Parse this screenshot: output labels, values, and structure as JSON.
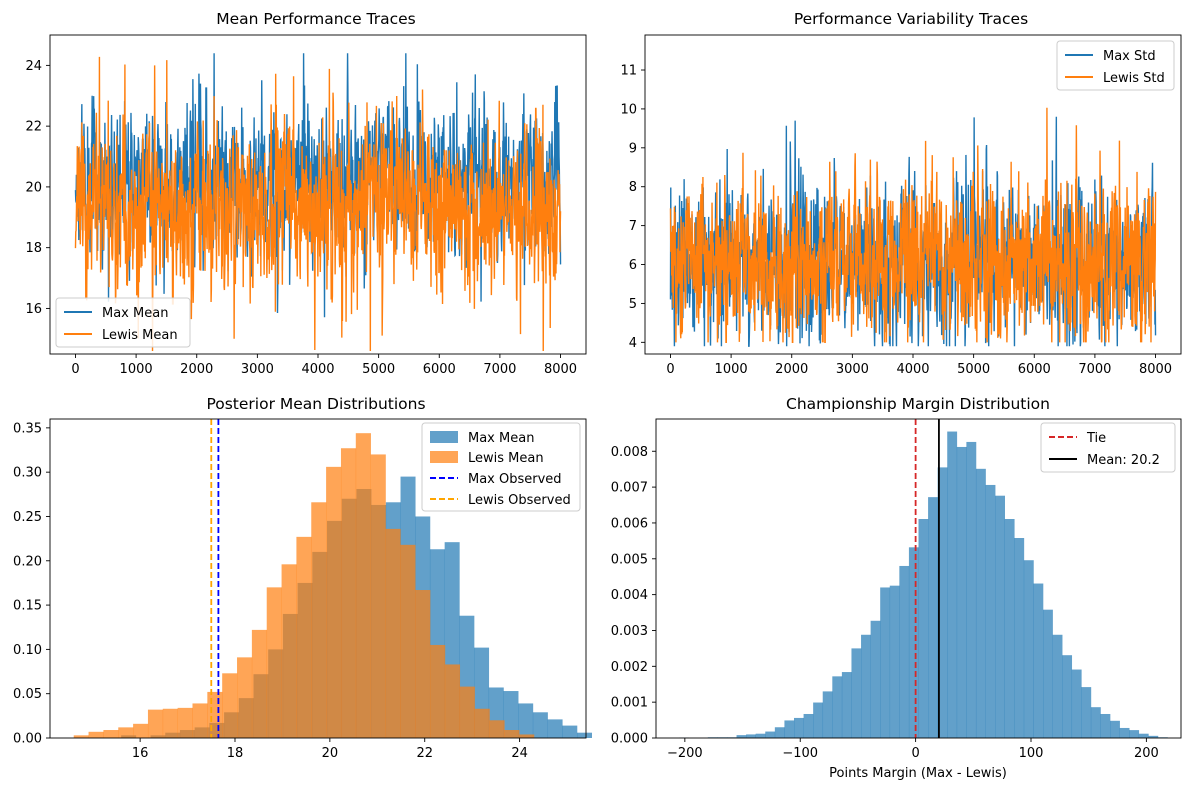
{
  "colors": {
    "blue": "#1f77b4",
    "orange": "#ff7f0e",
    "red": "#d62728",
    "black": "#000000",
    "dark_blue": "#0000ff",
    "gold": "#ffa500"
  },
  "chart_data": [
    {
      "id": "mean-trace",
      "type": "line",
      "title": "Mean Performance Traces",
      "xlabel": "",
      "ylabel": "",
      "xlim": [
        -420,
        8420
      ],
      "ylim": [
        14.5,
        25.0
      ],
      "xticks": [
        0,
        1000,
        2000,
        3000,
        4000,
        5000,
        6000,
        7000,
        8000
      ],
      "yticks": [
        16,
        18,
        20,
        22,
        24
      ],
      "legend": "lower-left",
      "x": {
        "start": 0,
        "end": 8000,
        "count": 8000
      },
      "series": [
        {
          "name": "Max Mean",
          "color": "#1f77b4",
          "center": 20.2,
          "std": 1.15,
          "min": 15.6,
          "max": 24.4,
          "seed": 11
        },
        {
          "name": "Lewis Mean",
          "color": "#ff7f0e",
          "center": 19.3,
          "std": 1.25,
          "min": 14.6,
          "max": 24.3,
          "seed": 23
        }
      ]
    },
    {
      "id": "std-trace",
      "type": "line",
      "title": "Performance Variability Traces",
      "xlabel": "",
      "ylabel": "",
      "xlim": [
        -420,
        8420
      ],
      "ylim": [
        3.7,
        11.9
      ],
      "xticks": [
        0,
        1000,
        2000,
        3000,
        4000,
        5000,
        6000,
        7000,
        8000
      ],
      "yticks": [
        4,
        5,
        6,
        7,
        8,
        9,
        10,
        11
      ],
      "legend": "top-right",
      "x": {
        "start": 0,
        "end": 8000,
        "count": 8000
      },
      "series": [
        {
          "name": "Max Std",
          "color": "#1f77b4",
          "center": 6.1,
          "std": 0.95,
          "min": 3.9,
          "max": 9.8,
          "seed": 37
        },
        {
          "name": "Lewis Std",
          "color": "#ff7f0e",
          "center": 6.1,
          "std": 1.0,
          "min": 4.0,
          "max": 11.6,
          "seed": 53
        }
      ]
    },
    {
      "id": "posterior-hist",
      "type": "bar",
      "title": "Posterior Mean Distributions",
      "xlabel": "",
      "ylabel": "",
      "xlim": [
        14.1,
        25.4
      ],
      "ylim": [
        0,
        0.36
      ],
      "xticks": [
        16,
        18,
        20,
        22,
        24
      ],
      "yticks": [
        0.0,
        0.05,
        0.1,
        0.15,
        0.2,
        0.25,
        0.3,
        0.35
      ],
      "ytick_labels": [
        "0.00",
        "0.05",
        "0.10",
        "0.15",
        "0.20",
        "0.25",
        "0.30",
        "0.35"
      ],
      "legend": "top-right",
      "series": [
        {
          "name": "Max Mean",
          "color": "#1f77b4",
          "alpha": 0.7,
          "bin_start": 15.6,
          "bin_width": 0.31,
          "values": [
            0.003,
            0.0,
            0.003,
            0.006,
            0.009,
            0.012,
            0.017,
            0.029,
            0.045,
            0.072,
            0.1,
            0.14,
            0.175,
            0.21,
            0.245,
            0.27,
            0.281,
            0.263,
            0.266,
            0.295,
            0.25,
            0.213,
            0.221,
            0.138,
            0.102,
            0.057,
            0.053,
            0.039,
            0.029,
            0.021,
            0.014,
            0.006
          ]
        },
        {
          "name": "Lewis Mean",
          "color": "#ff7f0e",
          "alpha": 0.7,
          "bin_start": 14.6,
          "bin_width": 0.313,
          "values": [
            0.003,
            0.007,
            0.009,
            0.012,
            0.016,
            0.032,
            0.033,
            0.034,
            0.039,
            0.052,
            0.073,
            0.091,
            0.122,
            0.17,
            0.196,
            0.227,
            0.266,
            0.306,
            0.327,
            0.344,
            0.32,
            0.236,
            0.218,
            0.167,
            0.105,
            0.083,
            0.058,
            0.033,
            0.02,
            0.009,
            0.004
          ]
        }
      ],
      "vlines": [
        {
          "name": "Max Observed",
          "x": 17.65,
          "color": "#0000ff"
        },
        {
          "name": "Lewis Observed",
          "x": 17.5,
          "color": "#ffa500"
        }
      ]
    },
    {
      "id": "margin-hist",
      "type": "bar",
      "title": "Championship Margin Distribution",
      "xlabel": "Points Margin (Max - Lewis)",
      "ylabel": "",
      "xlim": [
        -225,
        230
      ],
      "ylim": [
        0,
        0.0089
      ],
      "xticks": [
        -200,
        -100,
        0,
        100,
        200
      ],
      "xtick_labels": [
        "−200",
        "−100",
        "0",
        "100",
        "200"
      ],
      "yticks": [
        0,
        0.001,
        0.002,
        0.003,
        0.004,
        0.005,
        0.006,
        0.007,
        0.008
      ],
      "ytick_labels": [
        "0.000",
        "0.001",
        "0.002",
        "0.003",
        "0.004",
        "0.005",
        "0.006",
        "0.007",
        "0.008"
      ],
      "legend": "top-right",
      "series": [
        {
          "name": "Margin",
          "color": "#1f77b4",
          "alpha": 0.7,
          "bin_start": -205,
          "bin_width": 8.3,
          "values": [
            1e-05,
            0.0,
            0.0,
            2e-05,
            2e-05,
            2e-05,
            8e-05,
            0.0001,
            0.00012,
            0.00018,
            0.0003,
            0.00049,
            0.00056,
            0.00067,
            0.00099,
            0.0013,
            0.00172,
            0.00184,
            0.0025,
            0.00288,
            0.00327,
            0.0042,
            0.00425,
            0.0048,
            0.00532,
            0.00611,
            0.00672,
            0.00755,
            0.00855,
            0.00812,
            0.00826,
            0.00751,
            0.00706,
            0.00676,
            0.00611,
            0.00558,
            0.00496,
            0.00431,
            0.00358,
            0.00288,
            0.00231,
            0.00191,
            0.00142,
            0.00086,
            0.00067,
            0.00048,
            0.00028,
            0.00022,
            0.00012,
            6e-05,
            2e-05
          ]
        }
      ],
      "vlines": [
        {
          "name": "Tie",
          "x": 0,
          "color": "#d62728",
          "dashed": true
        },
        {
          "name": "Mean: 20.2",
          "x": 20.2,
          "color": "#000000",
          "dashed": false
        }
      ]
    }
  ]
}
